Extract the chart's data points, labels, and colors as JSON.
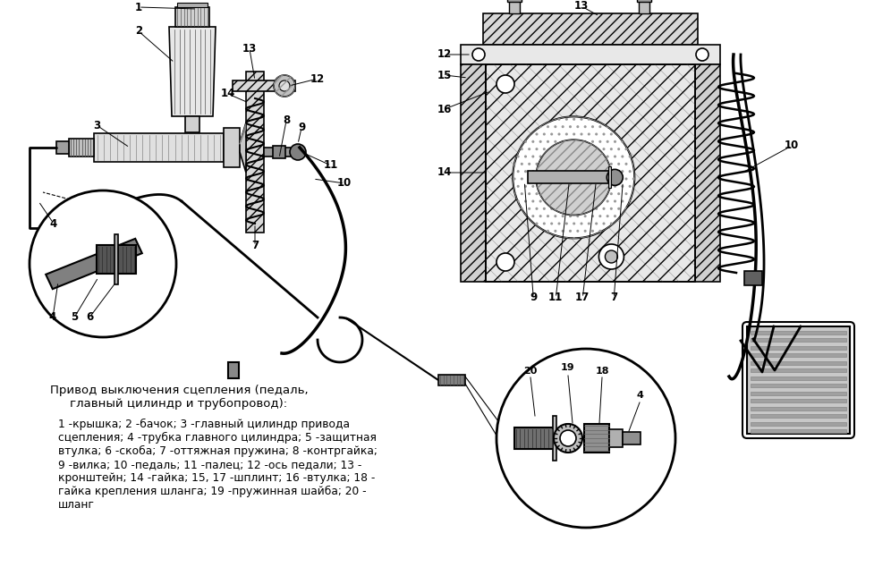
{
  "background_color": "#ffffff",
  "figsize": [
    9.77,
    6.53
  ],
  "dpi": 100,
  "caption_title": "Привод выключения сцепления (педаль,\nглавный цилиндр и трубопровод):",
  "caption_body": "1 -крышка; 2 -бачок; 3 -главный цилиндр привода\nсцепления; 4 -трубка главного цилиндра; 5 -защитная\nвтулка; 6 -скоба; 7 -оттяжная пружина; 8 -контргайка;\n9 -вилка; 10 -педаль; 11 -палец; 12 -ось педали; 13 -\nкронштейн; 14 -гайка; 15, 17 -шплинт; 16 -втулка; 18 -\nгайка крепления шланга; 19 -пружинная шайба; 20 -\nшланг",
  "text_color": "#000000"
}
